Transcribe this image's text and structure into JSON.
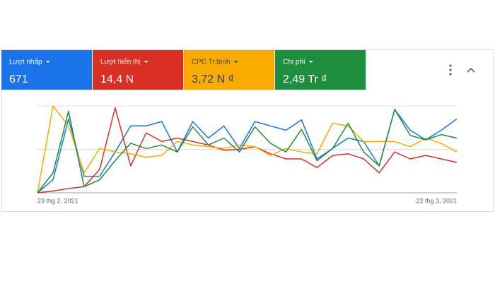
{
  "metrics": [
    {
      "label": "Lượt nhấp",
      "value": "671",
      "color": "#1a73e8",
      "text_color": "#ffffff"
    },
    {
      "label": "Lượt hiển thị",
      "value": "14,4 N",
      "color": "#d93025",
      "text_color": "#ffffff"
    },
    {
      "label": "CPC Tr.bình",
      "value": "3,72 N ₫",
      "color": "#f9ab00",
      "text_color": "#3c4043"
    },
    {
      "label": "Chi phí",
      "value": "2,49 Tr ₫",
      "color": "#1e8e3e",
      "text_color": "#ffffff"
    }
  ],
  "chart_data": {
    "type": "line",
    "categories": [
      "23 thg 2, 2021",
      null,
      null,
      null,
      null,
      null,
      null,
      null,
      null,
      null,
      null,
      null,
      null,
      null,
      null,
      null,
      null,
      null,
      null,
      null,
      null,
      null,
      null,
      null,
      null,
      null,
      null,
      "22 thg 3, 2021"
    ],
    "series": [
      {
        "color": "#1a73e8",
        "values": [
          0,
          15,
          85,
          19,
          19,
          47,
          77,
          77,
          82,
          47,
          82,
          63,
          77,
          51,
          82,
          77,
          72,
          84,
          39,
          51,
          63,
          59,
          31,
          96,
          72,
          61,
          72,
          85
        ]
      },
      {
        "color": "#d93025",
        "values": [
          0,
          2,
          5,
          7,
          27,
          98,
          31,
          69,
          59,
          63,
          59,
          55,
          49,
          50,
          53,
          45,
          39,
          39,
          29,
          43,
          45,
          39,
          23,
          47,
          39,
          43,
          39,
          35
        ]
      },
      {
        "color": "#f9ab00",
        "values": [
          0,
          100,
          77,
          23,
          51,
          47,
          45,
          41,
          43,
          59,
          55,
          53,
          51,
          55,
          53,
          43,
          51,
          47,
          45,
          80,
          77,
          59,
          59,
          59,
          53,
          63,
          57,
          47
        ]
      },
      {
        "color": "#1e8e3e",
        "values": [
          0,
          23,
          94,
          7,
          15,
          37,
          57,
          51,
          55,
          47,
          76,
          55,
          63,
          47,
          76,
          57,
          47,
          73,
          37,
          51,
          80,
          47,
          31,
          96,
          66,
          61,
          67,
          63
        ]
      }
    ],
    "ylim": [
      0,
      100
    ],
    "yticks": [
      0,
      50,
      100
    ],
    "grid": true
  }
}
